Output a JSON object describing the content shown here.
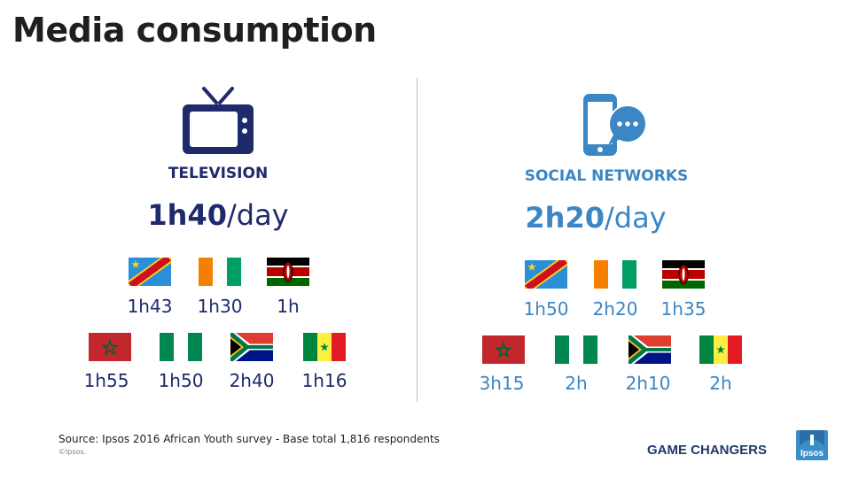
{
  "title": "Media consumption",
  "colors": {
    "left_accent": "#1e2a6b",
    "right_accent": "#3b86c4"
  },
  "television": {
    "icon": "tv-icon",
    "label": "TELEVISION",
    "average_value": "1h40",
    "average_unit": "/day",
    "countries": [
      {
        "flag": "dr-congo-flag",
        "value": "1h43"
      },
      {
        "flag": "ivory-coast-flag",
        "value": "1h30"
      },
      {
        "flag": "kenya-flag",
        "value": "1h"
      },
      {
        "flag": "morocco-flag",
        "value": "1h55"
      },
      {
        "flag": "nigeria-flag",
        "value": "1h50"
      },
      {
        "flag": "south-africa-flag",
        "value": "2h40"
      },
      {
        "flag": "senegal-flag",
        "value": "1h16"
      }
    ]
  },
  "social": {
    "icon": "smartphone-chat-icon",
    "label": "SOCIAL NETWORKS",
    "average_value": "2h20",
    "average_unit": "/day",
    "countries": [
      {
        "flag": "dr-congo-flag",
        "value": "1h50"
      },
      {
        "flag": "ivory-coast-flag",
        "value": "2h20"
      },
      {
        "flag": "kenya-flag",
        "value": "1h35"
      },
      {
        "flag": "morocco-flag",
        "value": "3h15"
      },
      {
        "flag": "nigeria-flag",
        "value": "2h"
      },
      {
        "flag": "south-africa-flag",
        "value": "2h10"
      },
      {
        "flag": "senegal-flag",
        "value": "2h"
      }
    ]
  },
  "footer": {
    "source": "Source: Ipsos  2016 African Youth survey - Base total 1,816 respondents",
    "copyright": "©Ipsos.",
    "brand_tagline": "GAME CHANGERS",
    "logo_text": "Ipsos"
  }
}
